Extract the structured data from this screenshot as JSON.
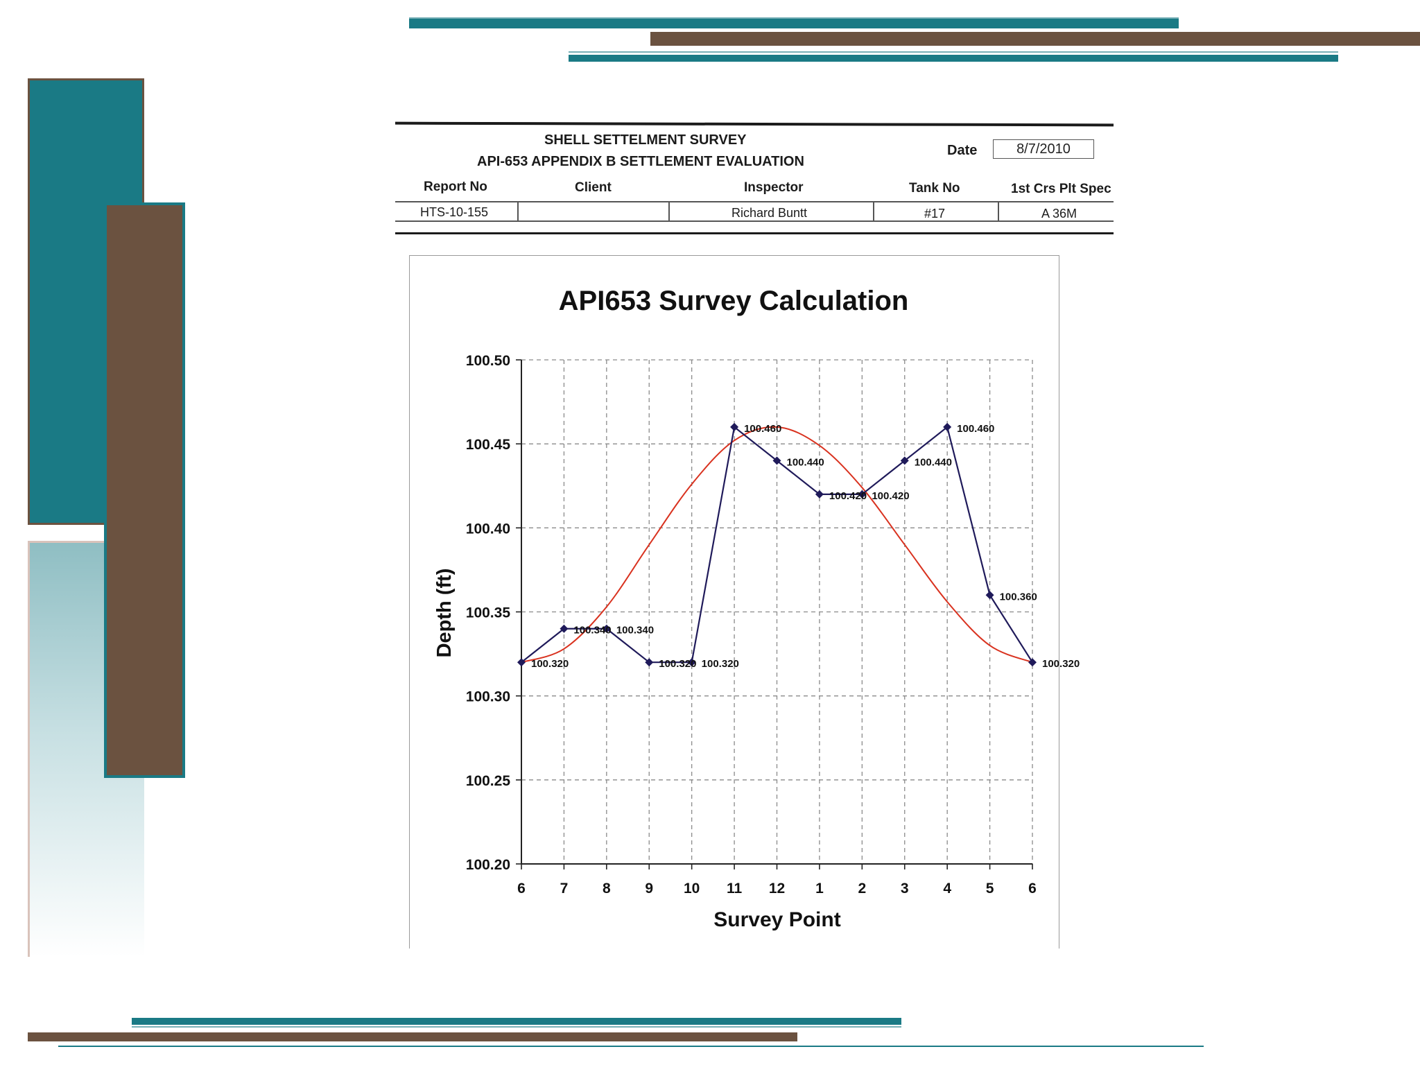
{
  "header": {
    "title_line1": "SHELL SETTELMENT SURVEY",
    "title_line2": "API-653 APPENDIX B SETTLEMENT EVALUATION",
    "date_label": "Date",
    "date_value": "8/7/2010",
    "columns": [
      "Report No",
      "Client",
      "Inspector",
      "Tank No",
      "1st Crs Plt Spec"
    ],
    "values": [
      "HTS-10-155",
      "",
      "Richard Buntt",
      "#17",
      "A 36M"
    ]
  },
  "colors": {
    "teal": "#1a7a85",
    "brown": "#6b5240",
    "measured_line": "#1f1a5a",
    "fit_curve": "#d9321f"
  },
  "chart_data": {
    "type": "line",
    "title": "API653 Survey Calculation",
    "xlabel": "Survey Point",
    "ylabel": "Depth (ft)",
    "categories": [
      "6",
      "7",
      "8",
      "9",
      "10",
      "11",
      "12",
      "1",
      "2",
      "3",
      "4",
      "5",
      "6"
    ],
    "ylim": [
      100.2,
      100.5
    ],
    "yticks": [
      "100.50",
      "100.45",
      "100.40",
      "100.35",
      "100.30",
      "100.25",
      "100.20"
    ],
    "grid": true,
    "series": [
      {
        "values": [
          100.32,
          100.34,
          100.34,
          100.32,
          100.32,
          100.46,
          100.44,
          100.42,
          100.42,
          100.44,
          100.46,
          100.36,
          100.32
        ],
        "labels": [
          "100.320",
          "100.340",
          "100.340",
          "100.320",
          "100.320",
          "100.460",
          "100.440",
          "100.420",
          "100.420",
          "100.440",
          "100.460",
          "100.360",
          "100.320"
        ],
        "color": "#1f1a5a",
        "markers": "diamond"
      },
      {
        "values": [
          100.32,
          100.328,
          100.353,
          100.39,
          100.426,
          100.452,
          100.46,
          100.449,
          100.424,
          100.39,
          100.356,
          100.33,
          100.32
        ],
        "color": "#d9321f",
        "smooth": true
      }
    ]
  }
}
